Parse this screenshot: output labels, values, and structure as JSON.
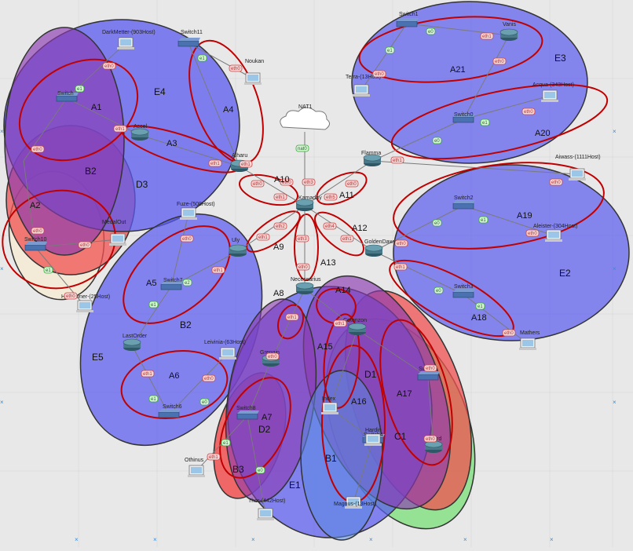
{
  "colors": {
    "area": "#c00000",
    "zone_blue": "#5a5af0",
    "zone_purple": "#8a3ab0",
    "zone_red": "#f05050",
    "zone_green": "#80e080",
    "zone_beige": "#f4ead6",
    "router": "#4a7a8a",
    "background": "#e8e8e8"
  },
  "cloud": {
    "label": "NAT1",
    "iface": "nat0"
  },
  "routers": [
    {
      "id": "kamaday",
      "label": "Kamaday"
    },
    {
      "id": "flamma",
      "label": "Flamma"
    },
    {
      "id": "goldendawn",
      "label": "GoldenDawn"
    },
    {
      "id": "necessarius",
      "label": "Necessarius"
    },
    {
      "id": "alharu",
      "label": "Alharu"
    },
    {
      "id": "accel",
      "label": "Accel"
    },
    {
      "id": "vanis",
      "label": "Vanis"
    },
    {
      "id": "uly",
      "label": "Uly"
    },
    {
      "id": "lastorder",
      "label": "LastOrder"
    },
    {
      "id": "grengin",
      "label": "Grengin"
    },
    {
      "id": "cotonzon",
      "label": "Cotonzon"
    },
    {
      "id": "elnard",
      "label": "Elnard"
    }
  ],
  "switches": [
    {
      "id": "switch1",
      "label": "Switch1"
    },
    {
      "id": "switch0",
      "label": "Switch0"
    },
    {
      "id": "switch11",
      "label": "Switch11"
    },
    {
      "id": "switch",
      "label": "Switch"
    },
    {
      "id": "switch2",
      "label": "Switch2"
    },
    {
      "id": "switch3",
      "label": "Switch3"
    },
    {
      "id": "switch7",
      "label": "Switch7"
    },
    {
      "id": "switch6",
      "label": "Switch6"
    },
    {
      "id": "switch8",
      "label": "Switch8"
    },
    {
      "id": "switch10",
      "label": "Switch10"
    },
    {
      "id": "switch4",
      "label": "Switch4"
    },
    {
      "id": "switch5",
      "label": "Switch5"
    }
  ],
  "hosts": [
    {
      "id": "darkmetter",
      "label": "DarkMetter-(903Host)"
    },
    {
      "id": "noukan",
      "label": "Noukan"
    },
    {
      "id": "terra",
      "label": "Terra-(13Host)"
    },
    {
      "id": "acqua",
      "label": "Acqua-(343Host)"
    },
    {
      "id": "aiwass",
      "label": "Aiwass-(1111Host)"
    },
    {
      "id": "aleister",
      "label": "Aleister-(304Host)"
    },
    {
      "id": "mathers",
      "label": "Mathers"
    },
    {
      "id": "fuze",
      "label": "Fuze-(508Host)"
    },
    {
      "id": "medalout",
      "label": "MedalOut"
    },
    {
      "id": "halfowner",
      "label": "HalfOwner-(25Host)"
    },
    {
      "id": "leivinia",
      "label": "Leivinia-(63Host)"
    },
    {
      "id": "othinus",
      "label": "Othinus"
    },
    {
      "id": "thor",
      "label": "Thor-(442Host)"
    },
    {
      "id": "magnus",
      "label": "Magnus-(13Host)"
    },
    {
      "id": "index",
      "label": "Index"
    },
    {
      "id": "hardin",
      "label": "Hardin"
    }
  ],
  "ifaces": {
    "eth0": "eth0",
    "eth1": "eth1",
    "eth2": "eth2",
    "eth3": "eth3",
    "eth4": "eth4",
    "eth5": "eth5",
    "e0": "e0",
    "e1": "e1",
    "e2": "e2"
  },
  "areas": [
    "A1",
    "A2",
    "A3",
    "A4",
    "A5",
    "A6",
    "A7",
    "A8",
    "A9",
    "A10",
    "A11",
    "A12",
    "A13",
    "A14",
    "A15",
    "A16",
    "A17",
    "A18",
    "A19",
    "A20",
    "A21"
  ],
  "zones": [
    "B1",
    "B2",
    "B3",
    "C1",
    "D1",
    "D2",
    "D3",
    "E1",
    "E2",
    "E3",
    "E4",
    "E5"
  ]
}
